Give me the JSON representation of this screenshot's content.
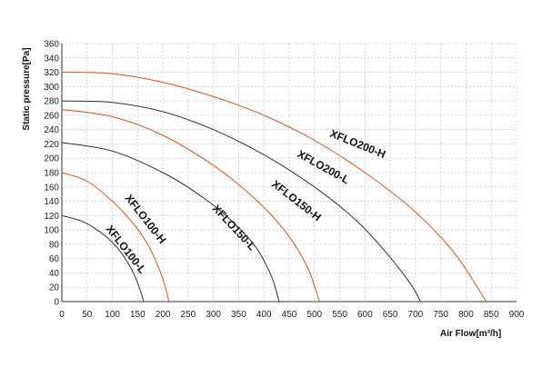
{
  "chart_data": {
    "type": "line",
    "xlabel": "Air Flow[m³/h]",
    "ylabel": "Static pressure[Pa]",
    "xlim": [
      0,
      900
    ],
    "ylim": [
      0,
      360
    ],
    "xticks": [
      0,
      50,
      100,
      150,
      200,
      250,
      300,
      350,
      400,
      450,
      500,
      550,
      600,
      650,
      700,
      750,
      800,
      850,
      900
    ],
    "yticks": [
      0,
      20,
      40,
      60,
      80,
      100,
      120,
      140,
      160,
      180,
      200,
      220,
      240,
      260,
      280,
      300,
      320,
      340,
      360
    ],
    "grid": true,
    "series": [
      {
        "name": "XFLO100-L",
        "color": "#333333",
        "x": [
          0,
          40,
          80,
          110,
          130,
          145,
          157,
          162
        ],
        "y": [
          120,
          112,
          95,
          75,
          55,
          35,
          12,
          0
        ]
      },
      {
        "name": "XFLO100-H",
        "color": "#d9531e",
        "x": [
          0,
          50,
          100,
          140,
          170,
          190,
          205,
          212
        ],
        "y": [
          180,
          168,
          140,
          110,
          80,
          50,
          20,
          0
        ]
      },
      {
        "name": "XFLO150-L",
        "color": "#333333",
        "x": [
          0,
          100,
          200,
          280,
          340,
          385,
          415,
          430
        ],
        "y": [
          222,
          210,
          180,
          145,
          110,
          75,
          35,
          0
        ]
      },
      {
        "name": "XFLO150-H",
        "color": "#d9531e",
        "x": [
          0,
          100,
          200,
          300,
          380,
          440,
          485,
          510
        ],
        "y": [
          268,
          258,
          232,
          190,
          145,
          100,
          50,
          0
        ]
      },
      {
        "name": "XFLO200-L",
        "color": "#333333",
        "x": [
          0,
          100,
          200,
          300,
          400,
          500,
          580,
          640,
          690,
          710
        ],
        "y": [
          280,
          278,
          265,
          240,
          205,
          160,
          115,
          70,
          25,
          0
        ]
      },
      {
        "name": "XFLO200-H",
        "color": "#d9531e",
        "x": [
          0,
          100,
          200,
          300,
          400,
          500,
          600,
          700,
          780,
          840
        ],
        "y": [
          320,
          318,
          306,
          286,
          260,
          225,
          180,
          125,
          65,
          0
        ]
      }
    ]
  }
}
